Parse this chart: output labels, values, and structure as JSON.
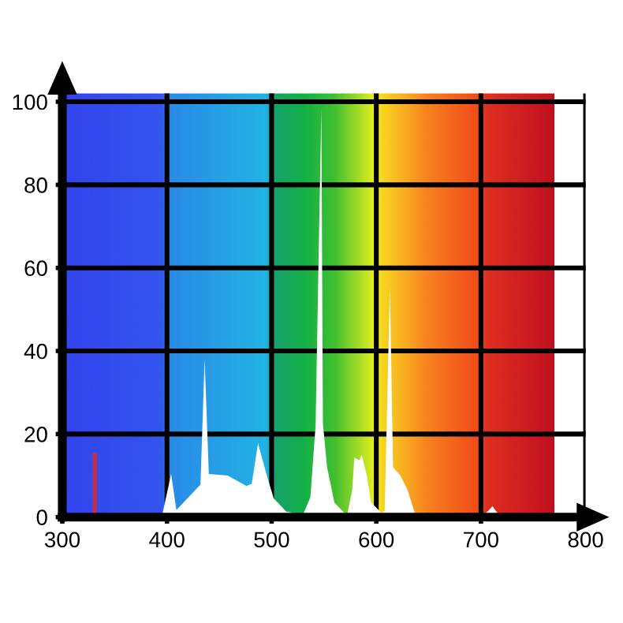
{
  "chart_data": {
    "type": "area",
    "xlim": [
      300,
      800
    ],
    "ylim": [
      0,
      102
    ],
    "xticks": [
      300,
      400,
      500,
      600,
      700,
      800
    ],
    "yticks": [
      0,
      20,
      40,
      60,
      80,
      100
    ],
    "grid": true,
    "legend": false,
    "marker": "none",
    "series": [
      {
        "color": "#ffffff",
        "x": [
          378,
          380,
          383,
          395,
          404,
          409,
          432,
          436,
          440,
          458,
          476,
          481,
          487,
          495,
          502,
          514,
          530,
          537,
          542,
          547.5,
          549,
          553,
          560,
          572,
          577,
          579,
          584,
          586,
          591,
          595,
          605,
          608,
          613,
          616,
          623,
          630,
          637,
          650,
          654,
          686,
          700,
          707,
          711,
          717,
          720
        ],
        "values": [
          0,
          0.5,
          0,
          0,
          10.4,
          1.7,
          7.8,
          38,
          10.4,
          10,
          7.5,
          8,
          17.8,
          10.4,
          4.5,
          1.3,
          0.6,
          4.8,
          22,
          98.6,
          22.6,
          12,
          3.5,
          0.3,
          6.5,
          14.3,
          13.7,
          15,
          10,
          3.5,
          1,
          1.5,
          55.6,
          12,
          10,
          6.5,
          0.8,
          0,
          0.6,
          0.3,
          0,
          1.5,
          2.6,
          0.6,
          0
        ]
      },
      {
        "type": "line",
        "color": "#c0304a",
        "x": [
          331,
          331
        ],
        "values": [
          0,
          15
        ]
      }
    ]
  }
}
